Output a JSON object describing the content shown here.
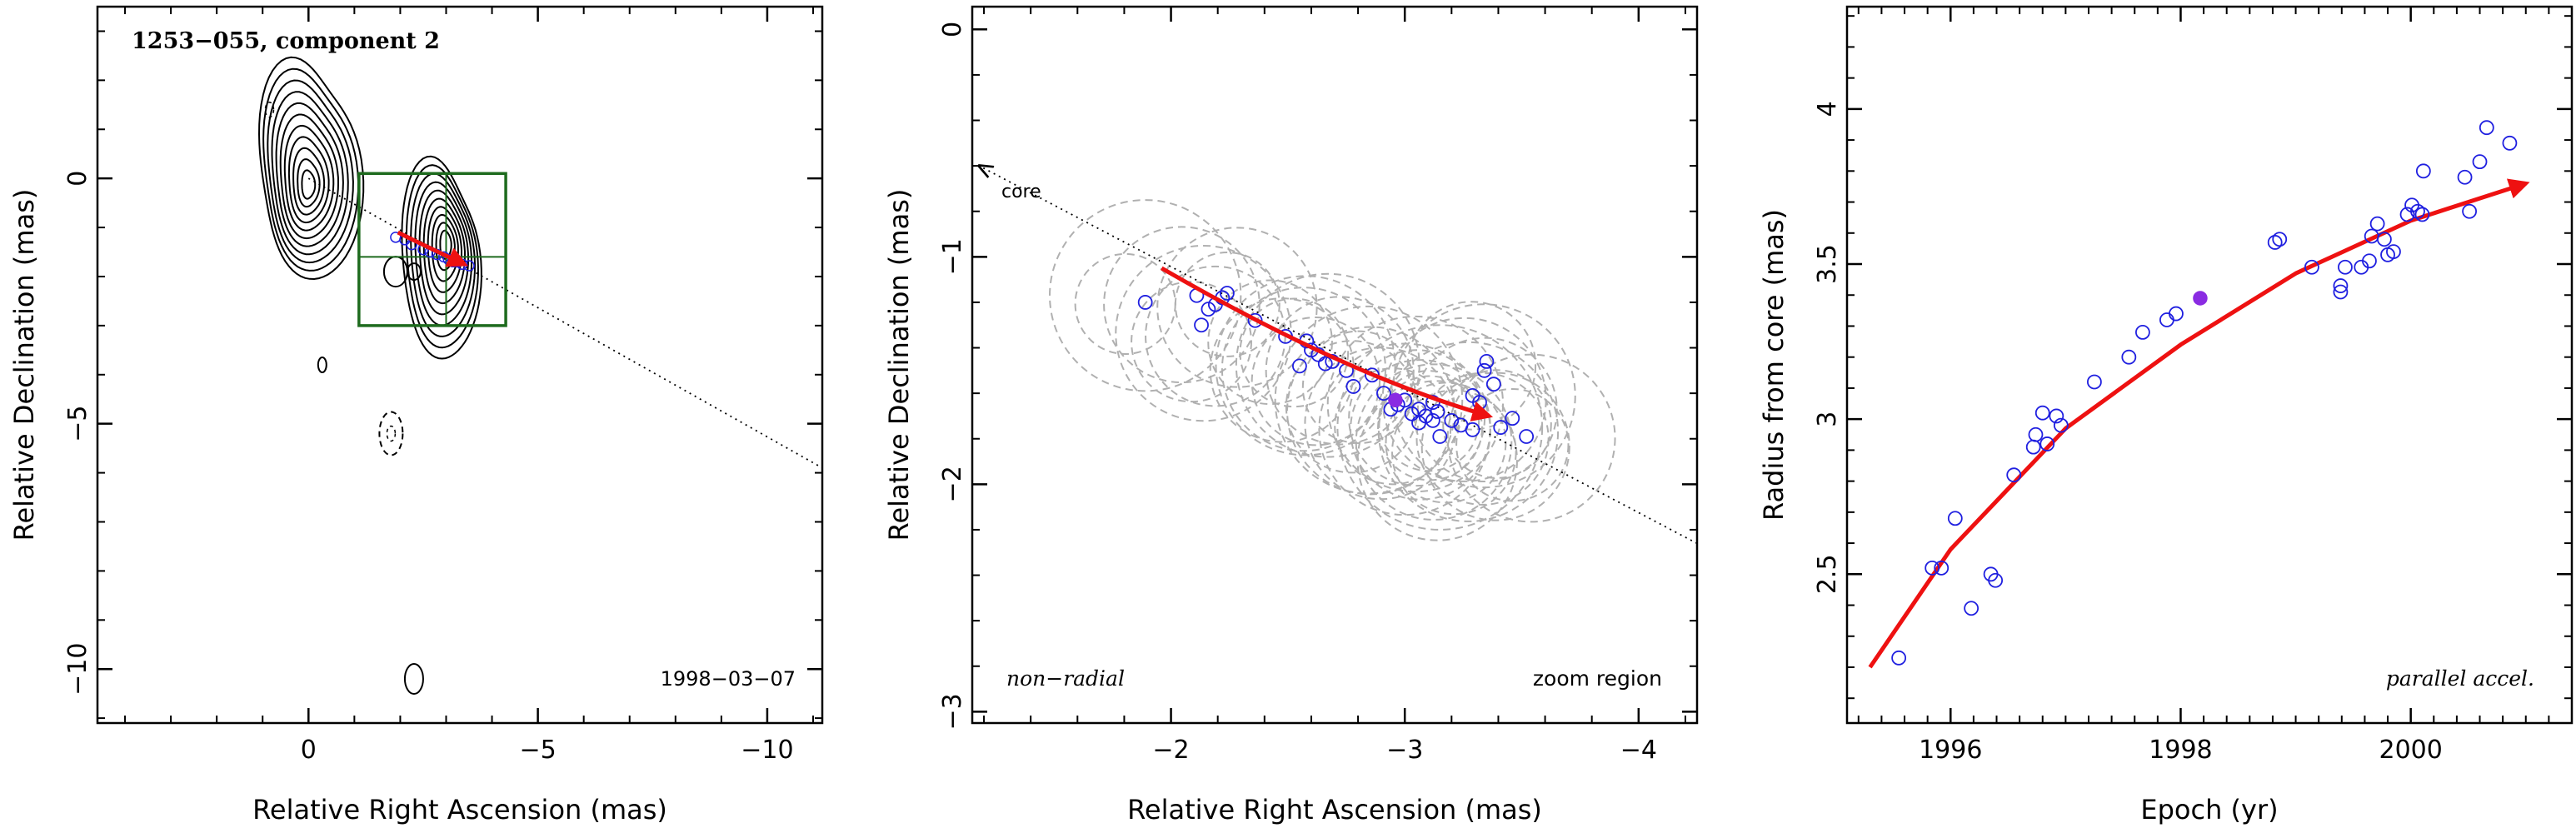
{
  "chart_data": [
    {
      "type": "scatter",
      "panel": "left",
      "title": "1253−055, component 2",
      "annotation_date": "1998−03−07",
      "xlabel": "Relative Right Ascension (mas)",
      "ylabel": "Relative Declination (mas)",
      "xlim": [
        4.6,
        -11.2
      ],
      "ylim": [
        -11.1,
        3.5
      ],
      "x_axis_reversed": true,
      "x_ticks": [
        0,
        -5,
        -10
      ],
      "x_tick_labels": [
        "0",
        "−5",
        "−10"
      ],
      "y_ticks": [
        0,
        -5,
        -10
      ],
      "y_tick_labels": [
        "0",
        "−5",
        "−10"
      ],
      "zoom_box": {
        "x": [
          -1.1,
          -4.3
        ],
        "y": [
          0.1,
          -3.0
        ]
      },
      "zoom_crosshair": {
        "x": -3.0,
        "y": -1.6
      },
      "contour_peaks": [
        {
          "x": 0.0,
          "y": 0.0
        },
        {
          "x": -3.0,
          "y": -1.3
        }
      ],
      "points": {
        "x": [
          -1.9,
          -2.1,
          -2.25,
          -2.5,
          -2.65,
          -2.8,
          -2.95,
          -3.05,
          -3.15,
          -3.25,
          -3.35,
          -3.5
        ],
        "y": [
          -1.2,
          -1.25,
          -1.35,
          -1.45,
          -1.5,
          -1.55,
          -1.6,
          -1.65,
          -1.7,
          -1.7,
          -1.75,
          -1.78
        ]
      }
    },
    {
      "type": "scatter",
      "panel": "middle",
      "xlabel": "Relative Right Ascension (mas)",
      "ylabel": "Relative Declination (mas)",
      "xlim": [
        -1.15,
        -4.25
      ],
      "ylim": [
        -3.05,
        0.1
      ],
      "x_axis_reversed": true,
      "x_ticks": [
        -2,
        -3,
        -4
      ],
      "x_tick_labels": [
        "−2",
        "−3",
        "−4"
      ],
      "y_ticks": [
        0,
        -1,
        -2,
        -3
      ],
      "y_tick_labels": [
        "0",
        "−1",
        "−2",
        "−3"
      ],
      "label_left": "non−radial",
      "label_right": "zoom region",
      "core_label": "core",
      "points": {
        "x": [
          -1.89,
          -2.11,
          -2.13,
          -2.16,
          -2.19,
          -2.22,
          -2.24,
          -2.36,
          -2.49,
          -2.55,
          -2.58,
          -2.6,
          -2.63,
          -2.66,
          -2.69,
          -2.75,
          -2.78,
          -2.86,
          -2.91,
          -2.94,
          -2.97,
          -3.0,
          -3.03,
          -3.06,
          -3.06,
          -3.09,
          -3.12,
          -3.12,
          -3.14,
          -3.15,
          -3.2,
          -3.24,
          -3.29,
          -3.32,
          -3.34,
          -3.35,
          -3.38,
          -3.41,
          -3.46,
          -3.52,
          -3.29
        ],
        "y": [
          -1.2,
          -1.17,
          -1.3,
          -1.23,
          -1.21,
          -1.18,
          -1.16,
          -1.28,
          -1.35,
          -1.48,
          -1.37,
          -1.41,
          -1.43,
          -1.47,
          -1.46,
          -1.5,
          -1.57,
          -1.52,
          -1.6,
          -1.67,
          -1.65,
          -1.63,
          -1.69,
          -1.67,
          -1.73,
          -1.7,
          -1.64,
          -1.72,
          -1.68,
          -1.79,
          -1.72,
          -1.74,
          -1.61,
          -1.64,
          -1.5,
          -1.46,
          -1.56,
          -1.75,
          -1.71,
          -1.79,
          -1.76
        ]
      },
      "highlight_point": {
        "x": -2.96,
        "y": -1.63
      }
    },
    {
      "type": "scatter",
      "panel": "right",
      "xlabel": "Epoch (yr)",
      "ylabel": "Radius from core (mas)",
      "xlim": [
        1995.1,
        2001.4
      ],
      "ylim": [
        2.02,
        4.33
      ],
      "x_ticks": [
        1996,
        1998,
        2000
      ],
      "x_tick_labels": [
        "1996",
        "1998",
        "2000"
      ],
      "y_ticks": [
        2.5,
        3,
        3.5,
        4
      ],
      "y_tick_labels": [
        "2.5",
        "3",
        "3.5",
        "4"
      ],
      "label_right": "parallel accel.",
      "points": {
        "x": [
          1995.55,
          1995.84,
          1995.92,
          1996.04,
          1996.18,
          1996.35,
          1996.39,
          1996.55,
          1996.72,
          1996.74,
          1996.8,
          1996.84,
          1996.92,
          1996.96,
          1997.25,
          1997.55,
          1997.67,
          1997.88,
          1997.96,
          1998.82,
          1998.86,
          1999.14,
          1999.39,
          1999.39,
          1999.43,
          1999.57,
          1999.64,
          1999.66,
          1999.71,
          1999.77,
          1999.8,
          1999.85,
          1999.97,
          2000.01,
          2000.06,
          2000.1,
          2000.11,
          2000.47,
          2000.51,
          2000.6,
          2000.66,
          2000.86
        ],
        "y": [
          2.23,
          2.52,
          2.52,
          2.68,
          2.39,
          2.5,
          2.48,
          2.82,
          2.91,
          2.95,
          3.02,
          2.92,
          3.01,
          2.98,
          3.12,
          3.2,
          3.28,
          3.32,
          3.34,
          3.57,
          3.58,
          3.49,
          3.41,
          3.43,
          3.49,
          3.49,
          3.51,
          3.59,
          3.63,
          3.58,
          3.53,
          3.54,
          3.66,
          3.69,
          3.67,
          3.66,
          3.8,
          3.78,
          3.67,
          3.83,
          3.94,
          3.89
        ]
      },
      "highlight_point": {
        "x": 1998.17,
        "y": 3.39
      },
      "fit_curve": {
        "x": [
          1995.3,
          1996.0,
          1997.0,
          1998.0,
          1999.0,
          2000.0,
          2001.0
        ],
        "y": [
          2.2,
          2.58,
          2.97,
          3.24,
          3.47,
          3.64,
          3.76
        ]
      }
    }
  ],
  "colors": {
    "points": "#1f1fe0",
    "fit": "#ee1111",
    "highlight": "#8a2be2",
    "zoom_box": "#1e6b1e",
    "beam_circles": "#b0b0b0"
  }
}
